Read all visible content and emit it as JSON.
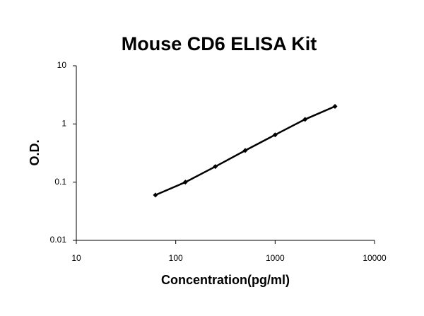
{
  "chart_data": {
    "type": "line",
    "title": "Mouse CD6 ELISA Kit",
    "x_label": "Concentration(pg/ml)",
    "y_label": "O.D.",
    "x": [
      62.5,
      125,
      250,
      500,
      1000,
      2000,
      4000
    ],
    "series": [
      {
        "color": "#000000",
        "values": [
          0.06,
          0.1,
          0.185,
          0.35,
          0.65,
          1.2,
          2.0
        ]
      }
    ],
    "xlim": [
      10,
      10000
    ],
    "xticks": [
      10,
      100,
      1000,
      10000
    ],
    "ylim": [
      0.01,
      10
    ],
    "yticks": [
      0.01,
      0.1,
      1,
      10
    ],
    "x_log": true,
    "y_log": true,
    "grid": false
  }
}
